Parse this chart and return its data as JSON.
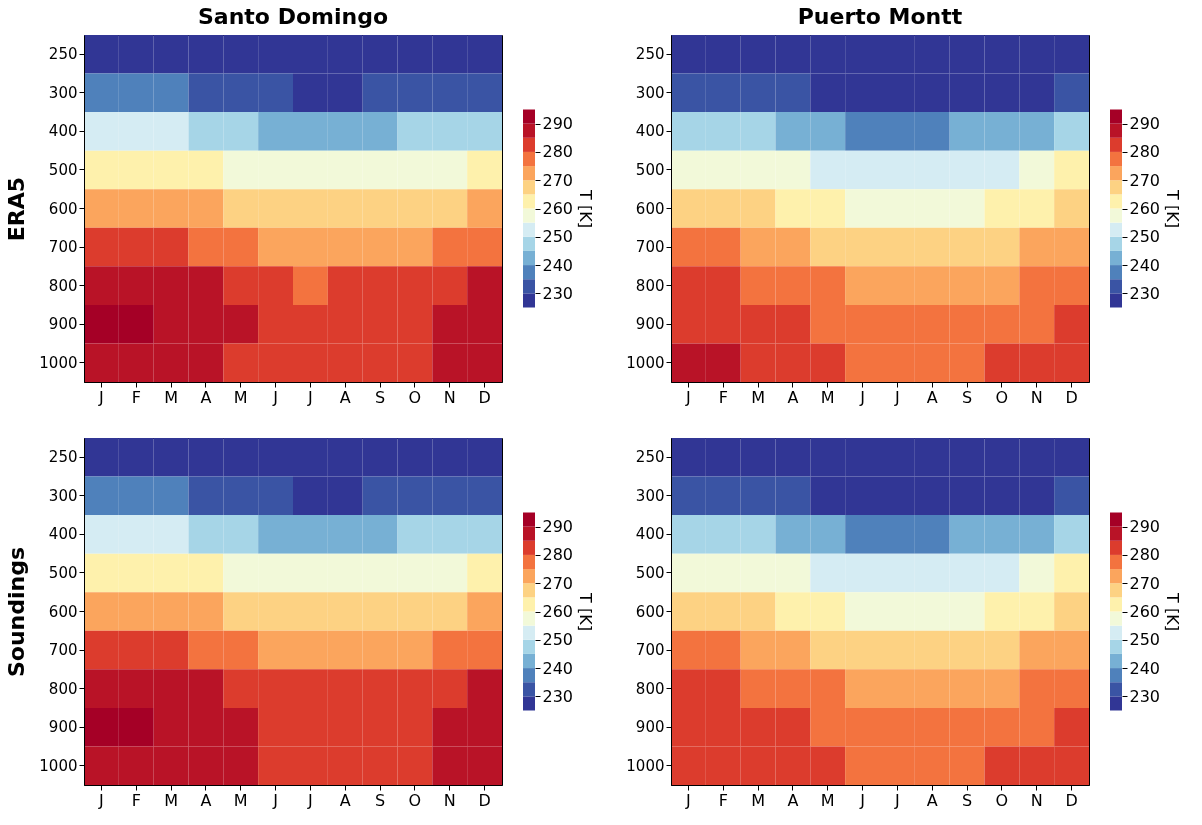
{
  "chart_data": [
    {
      "type": "heatmap",
      "title": "Santo Domingo",
      "ylabel": "ERA5",
      "clabel": "T [K]",
      "categories": [
        "J",
        "F",
        "M",
        "A",
        "M",
        "J",
        "J",
        "A",
        "S",
        "O",
        "N",
        "D"
      ],
      "y_categories": [
        "250",
        "300",
        "400",
        "500",
        "600",
        "700",
        "800",
        "900",
        "1000"
      ],
      "clim": [
        225,
        295
      ],
      "cticks": [
        230,
        240,
        250,
        260,
        270,
        280,
        290
      ],
      "colors": [
        "#313695",
        "#3a54a4",
        "#4f81bb",
        "#77b0d4",
        "#a6d5e7",
        "#d5ecf3",
        "#f2f9d9",
        "#fef1ac",
        "#fdd283",
        "#fba55d",
        "#f3733f",
        "#dc3c2d",
        "#b91327",
        "#a50026"
      ],
      "cells": [
        [
          228,
          228,
          228,
          227,
          226,
          226,
          226,
          226,
          226,
          226,
          227,
          227
        ],
        [
          236,
          236,
          235.5,
          233,
          231,
          230.5,
          229,
          229,
          230.5,
          231,
          232,
          234
        ],
        [
          251,
          251,
          250.5,
          249,
          245.5,
          244,
          244,
          244,
          244,
          245.5,
          247,
          249
        ],
        [
          263,
          263,
          262,
          261,
          259,
          256,
          256,
          256,
          256,
          257,
          259,
          262
        ],
        [
          273,
          273,
          272,
          270.5,
          267,
          265.5,
          265.5,
          265.5,
          266,
          266,
          269,
          271
        ],
        [
          282,
          282,
          280.5,
          278,
          275.5,
          273,
          273,
          273,
          274,
          274,
          277,
          279
        ],
        [
          287,
          287,
          286,
          285.5,
          281,
          280.5,
          279,
          280.5,
          280.5,
          281,
          284,
          286
        ],
        [
          291,
          291,
          289,
          288,
          286,
          283,
          283,
          283,
          283,
          284,
          288,
          289
        ],
        [
          288,
          288,
          287,
          286,
          284,
          283,
          283,
          283,
          283,
          284,
          285.5,
          288
        ]
      ]
    },
    {
      "type": "heatmap",
      "title": "Puerto Montt",
      "clabel": "T [K]",
      "categories": [
        "J",
        "F",
        "M",
        "A",
        "M",
        "J",
        "J",
        "A",
        "S",
        "O",
        "N",
        "D"
      ],
      "y_categories": [
        "250",
        "300",
        "400",
        "500",
        "600",
        "700",
        "800",
        "900",
        "1000"
      ],
      "clim": [
        225,
        295
      ],
      "cticks": [
        230,
        240,
        250,
        260,
        270,
        280,
        290
      ],
      "colors": [
        "#313695",
        "#3a54a4",
        "#4f81bb",
        "#77b0d4",
        "#a6d5e7",
        "#d5ecf3",
        "#f2f9d9",
        "#fef1ac",
        "#fdd283",
        "#fba55d",
        "#f3733f",
        "#dc3c2d",
        "#b91327",
        "#a50026"
      ],
      "cells": [
        [
          227,
          227,
          227,
          226,
          226,
          226,
          226,
          226,
          226,
          226,
          226,
          227
        ],
        [
          232,
          232,
          231,
          230.5,
          228,
          227,
          227,
          227,
          227,
          228,
          229,
          231
        ],
        [
          248,
          248,
          247,
          244,
          243,
          239,
          239,
          239,
          240.5,
          240.5,
          243,
          245.5
        ],
        [
          259,
          259,
          258,
          257,
          254,
          251,
          250.5,
          250.5,
          250.5,
          252,
          255.5,
          262
        ],
        [
          268,
          268,
          267,
          263,
          261,
          259,
          258,
          258,
          259,
          261,
          264,
          266
        ],
        [
          275.5,
          275.5,
          274,
          272,
          269,
          267,
          266,
          266,
          267,
          268,
          271,
          272
        ],
        [
          280.5,
          280.5,
          279,
          277,
          275.5,
          272,
          272,
          272,
          272,
          273,
          276,
          277
        ],
        [
          282,
          282,
          281,
          280.5,
          279,
          276,
          276,
          276,
          276,
          277,
          278,
          280.5
        ],
        [
          285.5,
          285.5,
          283,
          282,
          281,
          279,
          278,
          278,
          279,
          280.5,
          281,
          283
        ]
      ]
    },
    {
      "type": "heatmap",
      "ylabel": "Soundings",
      "clabel": "T [K]",
      "categories": [
        "J",
        "F",
        "M",
        "A",
        "M",
        "J",
        "J",
        "A",
        "S",
        "O",
        "N",
        "D"
      ],
      "y_categories": [
        "250",
        "300",
        "400",
        "500",
        "600",
        "700",
        "800",
        "900",
        "1000"
      ],
      "clim": [
        225,
        295
      ],
      "cticks": [
        230,
        240,
        250,
        260,
        270,
        280,
        290
      ],
      "colors": [
        "#313695",
        "#3a54a4",
        "#4f81bb",
        "#77b0d4",
        "#a6d5e7",
        "#d5ecf3",
        "#f2f9d9",
        "#fef1ac",
        "#fdd283",
        "#fba55d",
        "#f3733f",
        "#dc3c2d",
        "#b91327",
        "#a50026"
      ],
      "cells": [
        [
          228,
          228,
          227,
          227,
          226,
          226,
          226,
          226,
          226,
          226,
          227,
          227
        ],
        [
          236,
          236,
          235.5,
          233,
          231,
          230.5,
          229,
          229,
          230.5,
          231,
          233,
          234
        ],
        [
          251,
          251,
          250.5,
          248,
          245.5,
          244,
          243,
          243,
          244,
          245.5,
          247,
          249
        ],
        [
          262,
          263,
          262,
          260.5,
          258,
          256,
          256,
          256,
          256,
          257,
          259,
          262
        ],
        [
          273,
          273,
          272,
          270.5,
          267,
          265.5,
          265.5,
          265.5,
          266,
          266,
          269,
          271
        ],
        [
          282,
          282,
          280.5,
          278,
          275.5,
          273,
          273,
          273,
          274,
          274,
          277,
          279
        ],
        [
          287,
          287,
          286,
          285.5,
          282,
          280.5,
          280.5,
          280.5,
          280.5,
          281,
          284,
          286
        ],
        [
          291,
          291,
          289,
          288,
          286,
          283,
          283,
          283,
          283,
          284,
          288,
          289
        ],
        [
          288,
          288,
          288,
          287,
          285.5,
          283,
          283,
          283,
          283,
          284,
          286,
          289
        ]
      ]
    },
    {
      "type": "heatmap",
      "clabel": "T [K]",
      "categories": [
        "J",
        "F",
        "M",
        "A",
        "M",
        "J",
        "J",
        "A",
        "S",
        "O",
        "N",
        "D"
      ],
      "y_categories": [
        "250",
        "300",
        "400",
        "500",
        "600",
        "700",
        "800",
        "900",
        "1000"
      ],
      "clim": [
        225,
        295
      ],
      "cticks": [
        230,
        240,
        250,
        260,
        270,
        280,
        290
      ],
      "colors": [
        "#313695",
        "#3a54a4",
        "#4f81bb",
        "#77b0d4",
        "#a6d5e7",
        "#d5ecf3",
        "#f2f9d9",
        "#fef1ac",
        "#fdd283",
        "#fba55d",
        "#f3733f",
        "#dc3c2d",
        "#b91327",
        "#a50026"
      ],
      "cells": [
        [
          227,
          227,
          227,
          226,
          226,
          226,
          226,
          226,
          226,
          226,
          226,
          227
        ],
        [
          232,
          232,
          231,
          230.5,
          228,
          227,
          227,
          227,
          227,
          228,
          229,
          231
        ],
        [
          248,
          248,
          247,
          244,
          243,
          239,
          239,
          239,
          240.5,
          240.5,
          243,
          245.5
        ],
        [
          259,
          259,
          258,
          257,
          254,
          251,
          250.5,
          250.5,
          250.5,
          252,
          255.5,
          261
        ],
        [
          268,
          268,
          267,
          263,
          261,
          259,
          258,
          258,
          259,
          261,
          264,
          266
        ],
        [
          275.5,
          275.5,
          274,
          272,
          269,
          267,
          266,
          266,
          267,
          268,
          271,
          272
        ],
        [
          280.5,
          280.5,
          279,
          277,
          275.5,
          272,
          272,
          272,
          272,
          273,
          276,
          277
        ],
        [
          282,
          282,
          281,
          280.5,
          279,
          276,
          276,
          276,
          276,
          277,
          278,
          280.5
        ],
        [
          284,
          284,
          283,
          282,
          281,
          279,
          278,
          278,
          279,
          280.5,
          281,
          283
        ]
      ]
    }
  ]
}
